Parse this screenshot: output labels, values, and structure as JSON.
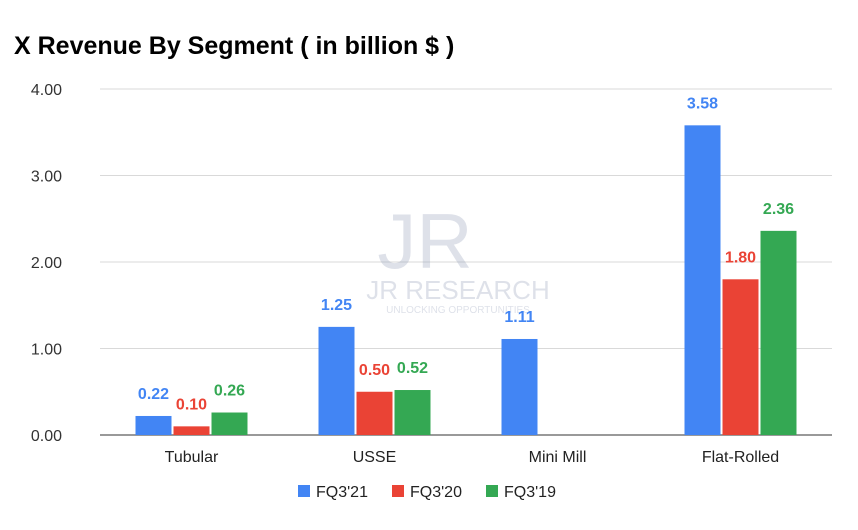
{
  "chart_data": {
    "type": "bar",
    "title": "X Revenue By Segment ( in billion $ )",
    "categories": [
      "Tubular",
      "USSE",
      "Mini Mill",
      "Flat-Rolled"
    ],
    "series": [
      {
        "name": "FQ3'21",
        "color": "#4285f4",
        "values": [
          0.22,
          1.25,
          1.11,
          3.58
        ],
        "labels": [
          "0.22",
          "1.25",
          "1.11",
          "3.58"
        ]
      },
      {
        "name": "FQ3'20",
        "color": "#ea4335",
        "values": [
          0.1,
          0.5,
          null,
          1.8
        ],
        "labels": [
          "0.10",
          "0.50",
          "",
          "1.80"
        ]
      },
      {
        "name": "FQ3'19",
        "color": "#34a853",
        "values": [
          0.26,
          0.52,
          null,
          2.36
        ],
        "labels": [
          "0.26",
          "0.52",
          "",
          "2.36"
        ]
      }
    ],
    "yticks": [
      "0.00",
      "1.00",
      "2.00",
      "3.00",
      "4.00"
    ],
    "ylim": [
      0,
      4
    ],
    "grid": true,
    "legend": "bottom"
  },
  "watermark": {
    "logo": "JR",
    "name": "JR RESEARCH",
    "tagline": "UNLOCKING OPPORTUNITIES"
  }
}
